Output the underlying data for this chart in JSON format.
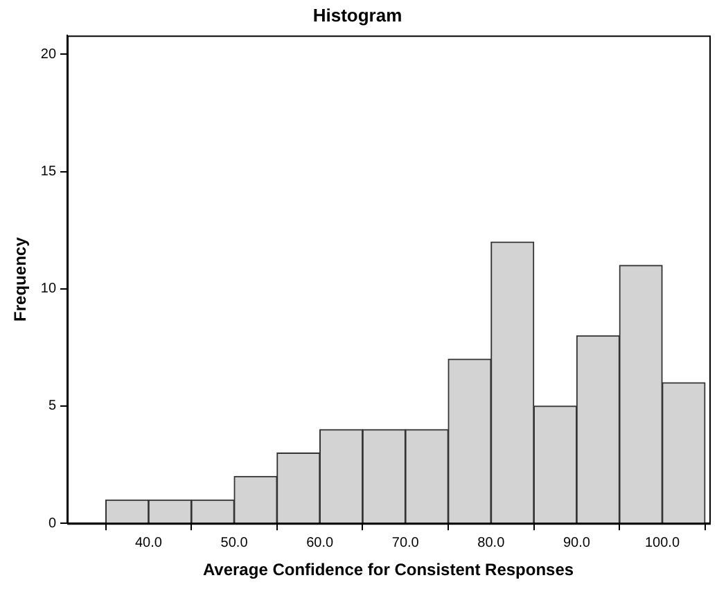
{
  "chart_data": {
    "type": "histogram",
    "title": "Histogram",
    "xlabel": "Average Confidence for Consistent Responses",
    "ylabel": "Frequency",
    "bins": [
      35,
      40,
      45,
      50,
      55,
      60,
      65,
      70,
      75,
      80,
      85,
      90,
      95,
      100,
      105
    ],
    "values": [
      1,
      1,
      1,
      2,
      3,
      4,
      4,
      4,
      7,
      12,
      5,
      8,
      11,
      6
    ],
    "color": "#d3d3d3",
    "xlim": [
      30.5,
      105.5
    ],
    "xticks": [
      {
        "value": 40,
        "label": "40.0"
      },
      {
        "value": 50,
        "label": "50.0"
      },
      {
        "value": 60,
        "label": "60.0"
      },
      {
        "value": 70,
        "label": "70.0"
      },
      {
        "value": 80,
        "label": "80.0"
      },
      {
        "value": 90,
        "label": "90.0"
      },
      {
        "value": 100,
        "label": "100.0"
      }
    ],
    "ylim": [
      0,
      20.8
    ],
    "yticks": [
      0,
      5,
      10,
      15,
      20
    ],
    "grid": false,
    "legend": false
  }
}
